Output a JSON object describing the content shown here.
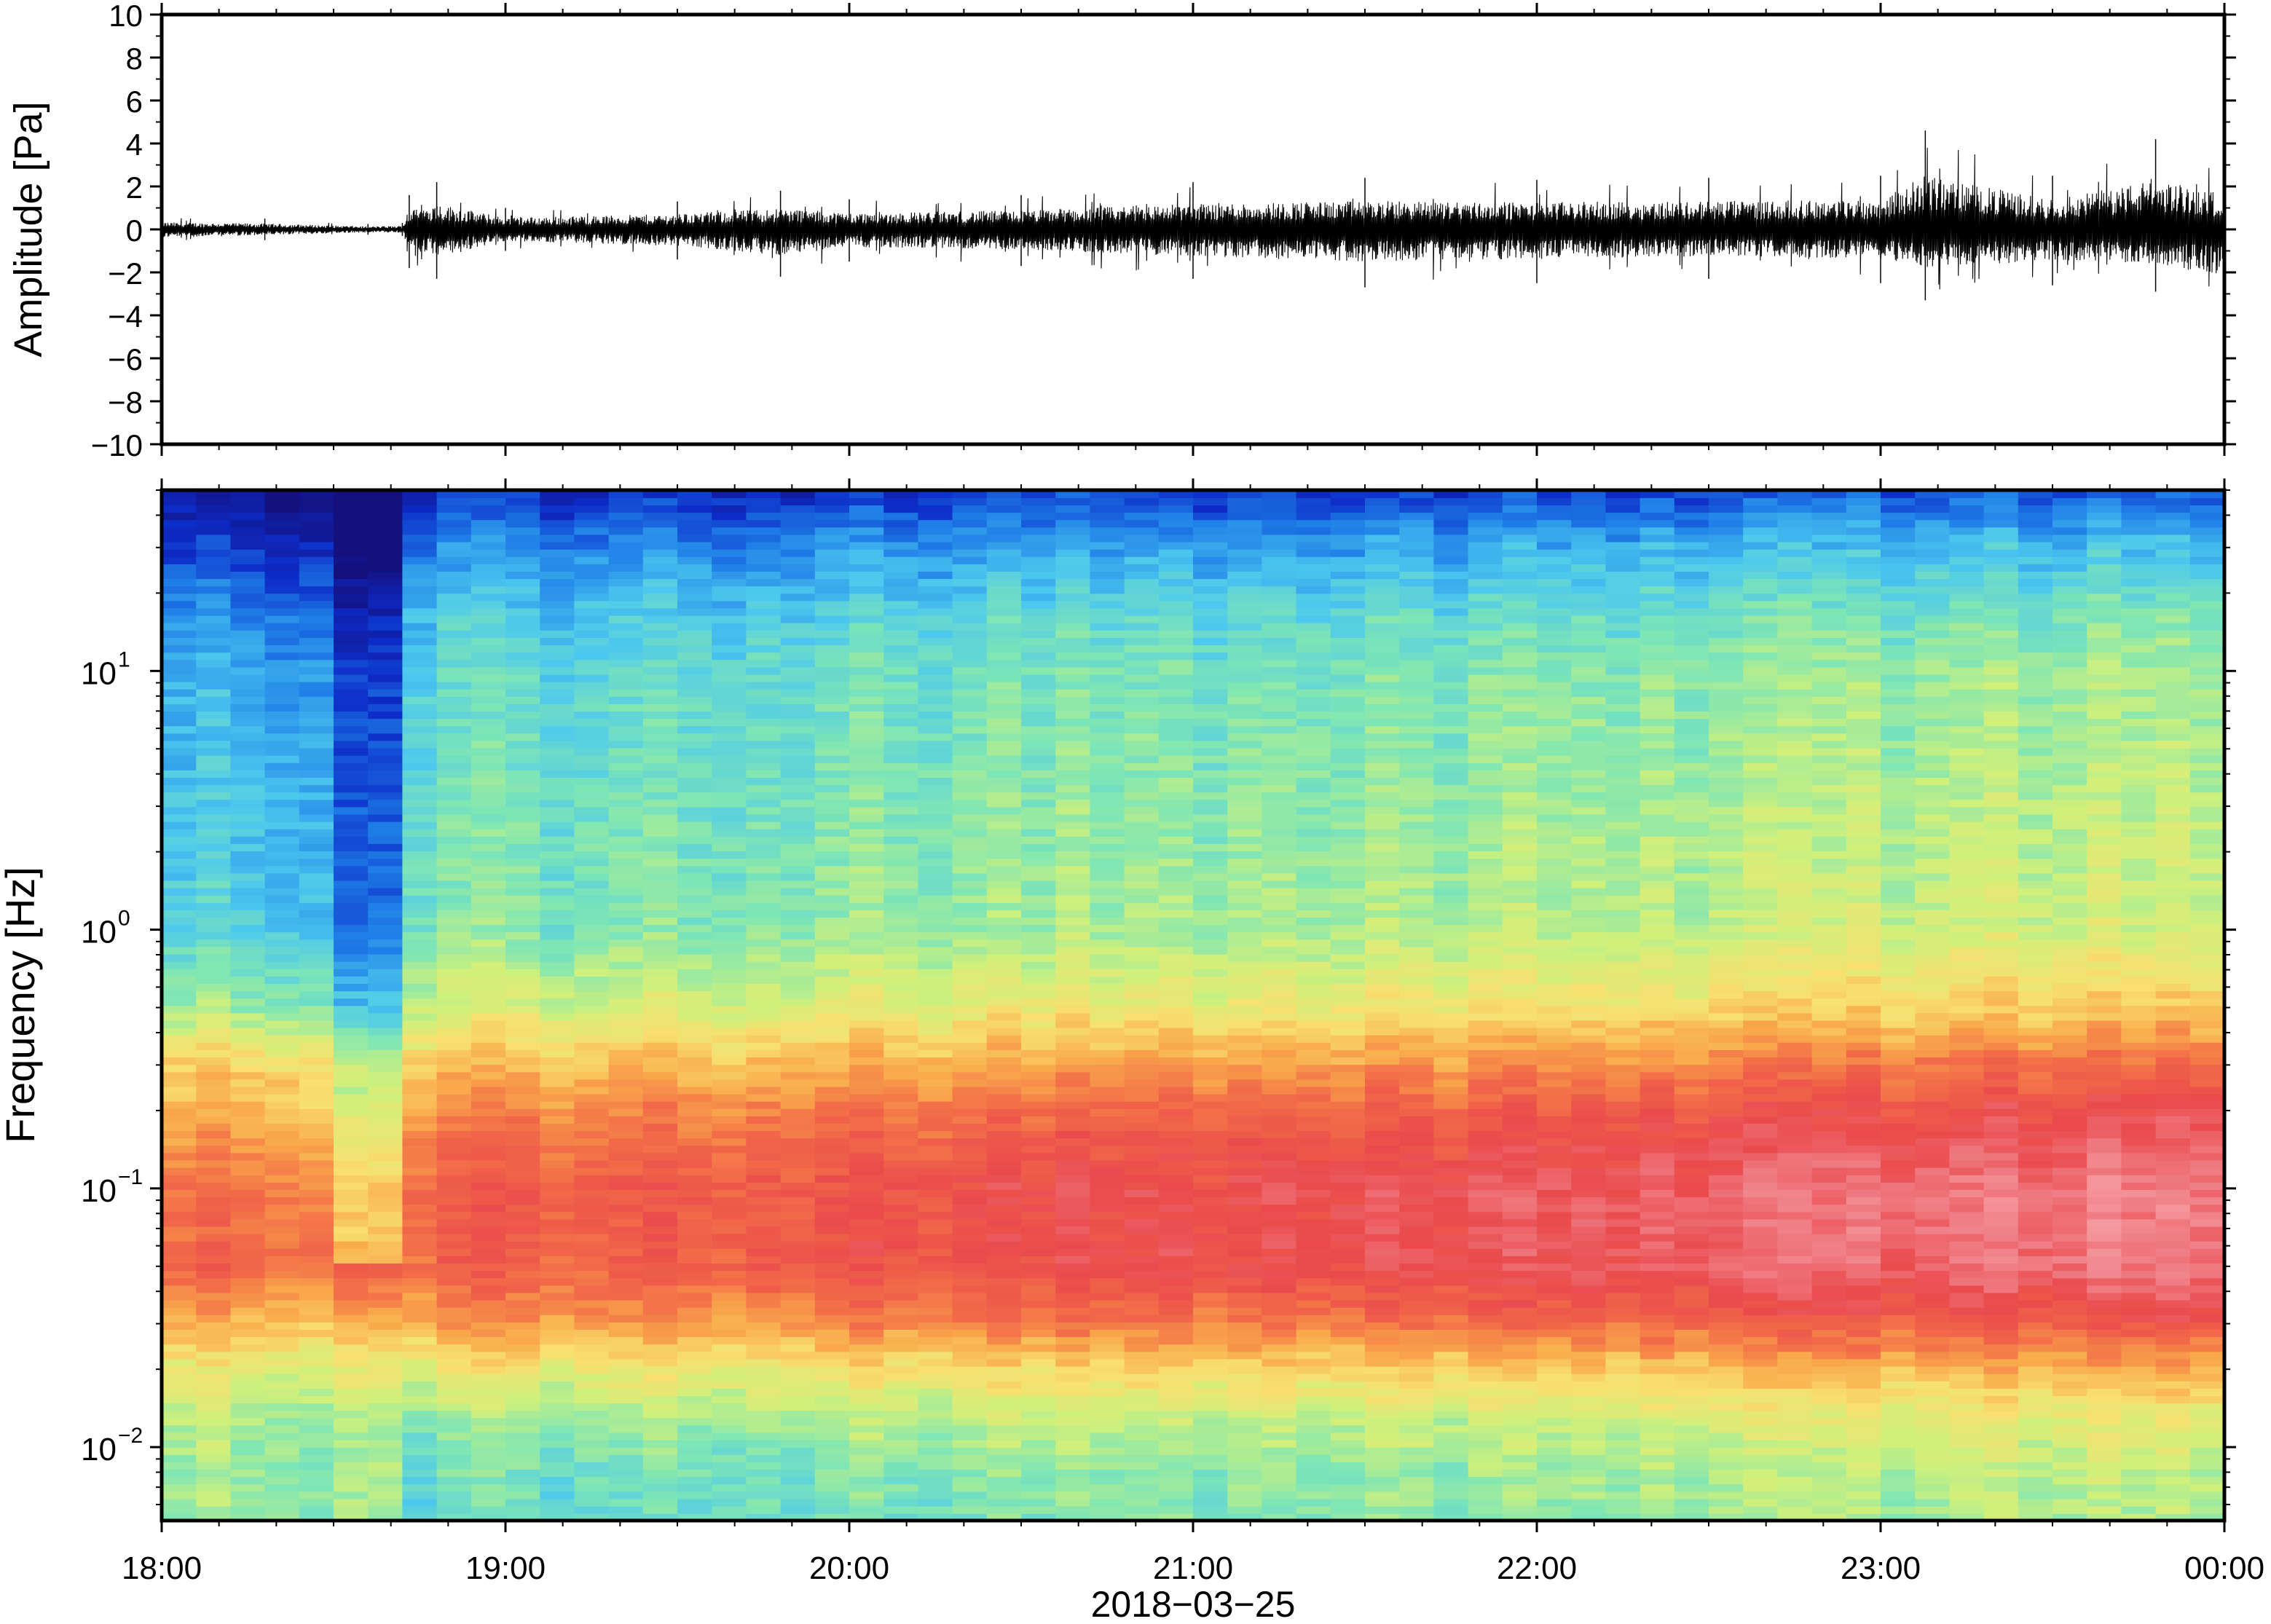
{
  "chart_data": [
    {
      "type": "line",
      "ylabel": "Amplitude [Pa]",
      "ylim": [
        -10,
        10
      ],
      "yticks": [
        "10",
        "8",
        "6",
        "4",
        "2",
        "0",
        "−2",
        "−4",
        "−6",
        "−8",
        "−10"
      ],
      "ytick_values": [
        10,
        8,
        6,
        4,
        2,
        0,
        -2,
        -4,
        -6,
        -8,
        -10
      ],
      "x_range_hours": [
        18,
        24
      ],
      "grid": false,
      "series_color": "#000000",
      "envelope": {
        "x_hours": [
          18.0,
          18.3,
          18.6,
          18.7,
          18.72,
          18.8,
          19.0,
          19.5,
          19.8,
          20.0,
          20.5,
          21.0,
          21.5,
          22.0,
          22.5,
          23.0,
          23.13,
          23.5,
          23.8,
          24.0
        ],
        "y_max": [
          0.6,
          0.5,
          0.25,
          0.3,
          1.6,
          2.2,
          1.0,
          1.3,
          1.8,
          1.4,
          1.6,
          2.2,
          2.4,
          2.3,
          2.4,
          2.5,
          4.6,
          2.5,
          4.2,
          3.0
        ],
        "y_min": [
          -0.7,
          -0.5,
          -0.25,
          -0.3,
          -1.8,
          -2.3,
          -1.0,
          -1.4,
          -2.2,
          -1.5,
          -1.7,
          -2.3,
          -2.7,
          -2.5,
          -2.3,
          -2.5,
          -3.3,
          -2.6,
          -2.9,
          -4.0
        ]
      }
    },
    {
      "type": "heatmap",
      "ylabel": "Frequency [Hz]",
      "xlabel": "2018−03−25",
      "y_scale": "log",
      "ylim": [
        0.0052,
        50
      ],
      "yticks": [
        {
          "value": 10,
          "base": "10",
          "exp": "1"
        },
        {
          "value": 1,
          "base": "10",
          "exp": "0"
        },
        {
          "value": 0.1,
          "base": "10",
          "exp": "−1"
        },
        {
          "value": 0.01,
          "base": "10",
          "exp": "−2"
        }
      ],
      "xticks": [
        "18:00",
        "19:00",
        "20:00",
        "21:00",
        "22:00",
        "23:00",
        "00:00"
      ],
      "xtick_hours": [
        18,
        19,
        20,
        21,
        22,
        23,
        24
      ],
      "x_range_hours": [
        18,
        24
      ],
      "colormap": [
        "#14107d",
        "#0d2cc8",
        "#1f7fe8",
        "#4cc8ee",
        "#7fe6b4",
        "#d0f07a",
        "#f8e070",
        "#f9a94b",
        "#f26a48",
        "#ea4a4c",
        "#f07e86",
        "#f8b4b4"
      ],
      "columns": 60,
      "quiet_interval_hours": [
        18.55,
        18.7
      ],
      "frequency_profile": {
        "log10_freq": [
          1.699,
          1.5,
          1.2,
          1.0,
          0.5,
          0.0,
          -0.3,
          -0.5,
          -0.7,
          -1.0,
          -1.3,
          -1.5,
          -1.7,
          -1.9,
          -2.1,
          -2.284
        ],
        "level_early": [
          0.03,
          0.1,
          0.2,
          0.24,
          0.27,
          0.3,
          0.4,
          0.56,
          0.66,
          0.76,
          0.75,
          0.63,
          0.5,
          0.42,
          0.4,
          0.4
        ],
        "level_late": [
          0.1,
          0.25,
          0.36,
          0.4,
          0.43,
          0.46,
          0.58,
          0.7,
          0.82,
          0.9,
          0.89,
          0.8,
          0.6,
          0.45,
          0.38,
          0.35
        ]
      }
    }
  ]
}
